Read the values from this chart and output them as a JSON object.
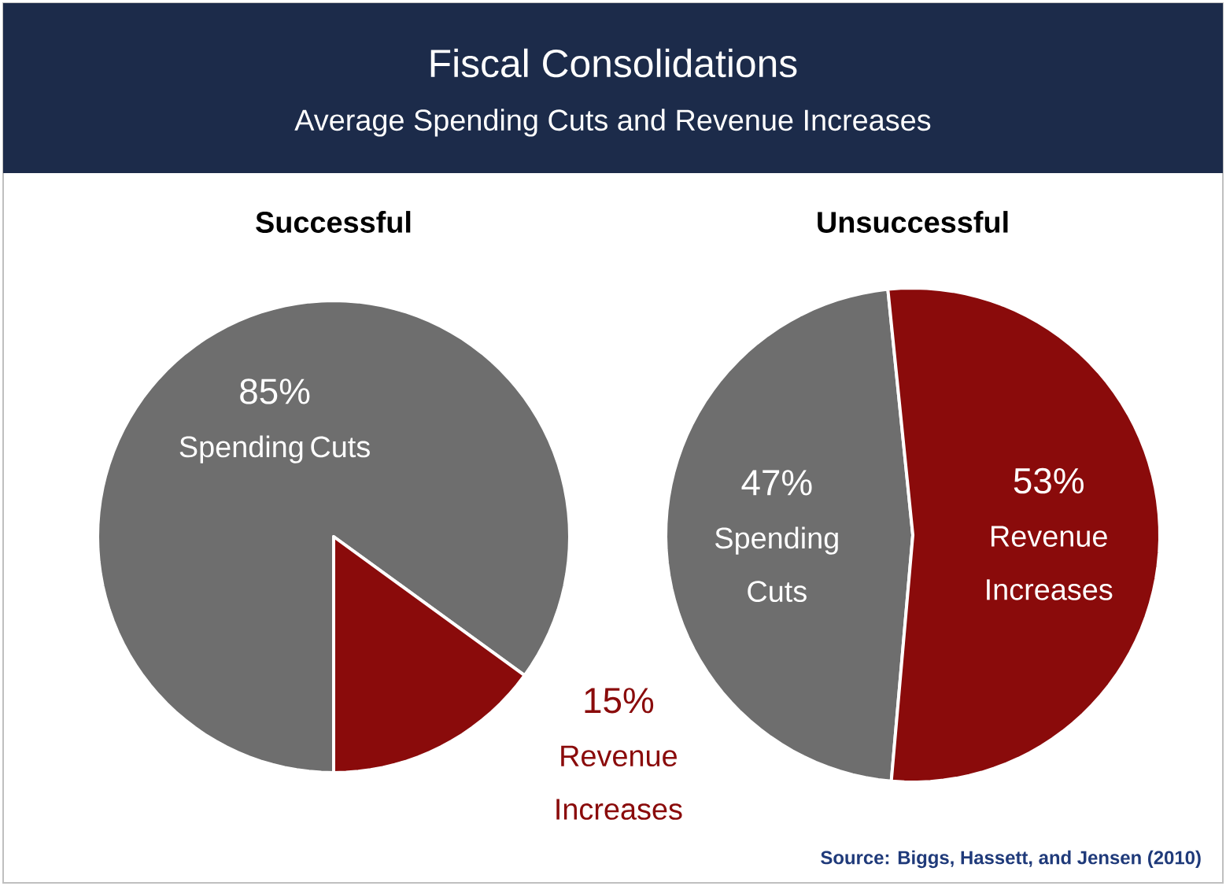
{
  "chart_data": [
    {
      "type": "other",
      "title": "Fiscal Consolidations",
      "subtitle": "Average Spending Cuts and Revenue Increases",
      "annotations": [
        "Source: Biggs, Hassett, and Jensen (2010)"
      ]
    },
    {
      "type": "pie",
      "title": "Successful",
      "categories": [
        "Spending Cuts",
        "Revenue Increases"
      ],
      "values": [
        85,
        15
      ],
      "value_labels": [
        "85%",
        "15%"
      ],
      "colors": [
        "#6e6e6e",
        "#8a0b0b"
      ]
    },
    {
      "type": "pie",
      "title": "Unsuccessful",
      "categories": [
        "Spending Cuts",
        "Revenue Increases"
      ],
      "values": [
        47,
        53
      ],
      "value_labels": [
        "47%",
        "53%"
      ],
      "colors": [
        "#6e6e6e",
        "#8a0b0b"
      ]
    }
  ]
}
